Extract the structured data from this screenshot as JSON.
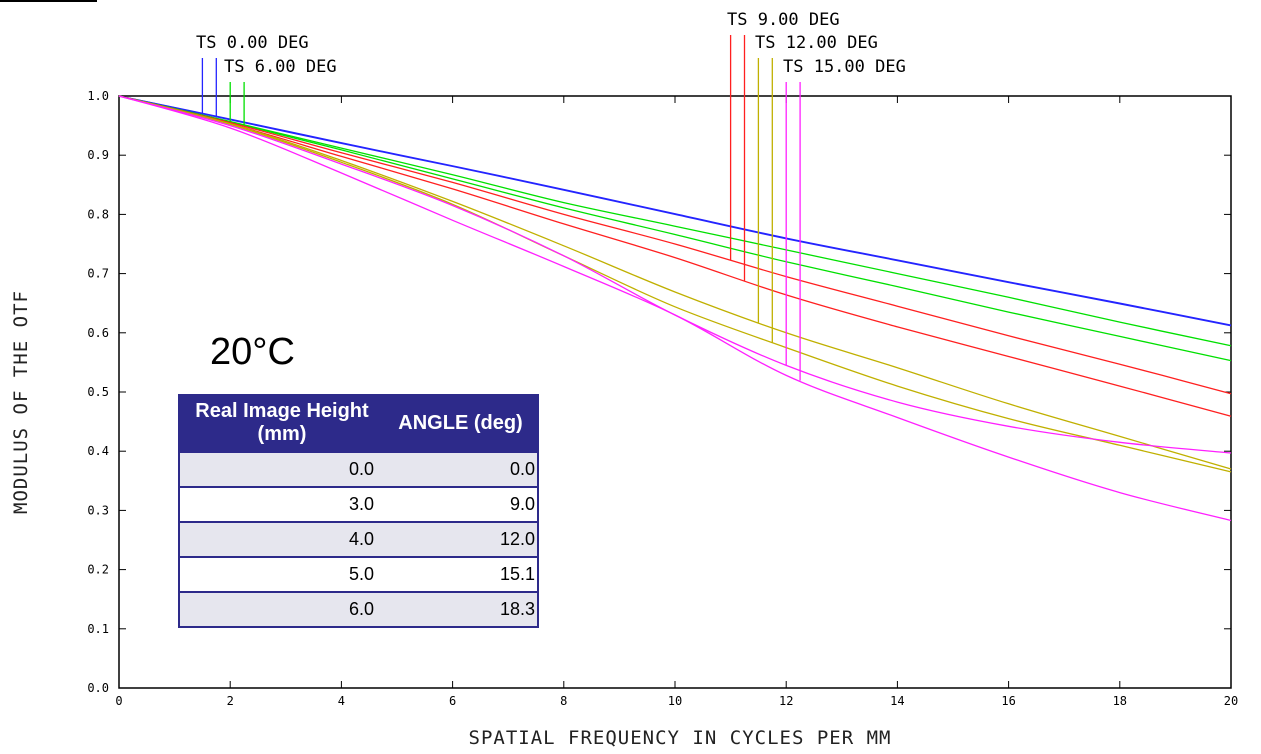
{
  "chart_data": {
    "type": "line",
    "title": "",
    "xlabel": "SPATIAL FREQUENCY IN CYCLES PER MM",
    "ylabel": "MODULUS OF THE OTF",
    "xlim": [
      0,
      20
    ],
    "ylim": [
      0,
      1
    ],
    "x_ticks": [
      0,
      2,
      4,
      6,
      8,
      10,
      12,
      14,
      16,
      18,
      20
    ],
    "y_ticks": [
      "0.0",
      "0.1",
      "0.2",
      "0.3",
      "0.4",
      "0.5",
      "0.6",
      "0.7",
      "0.8",
      "0.9",
      "1.0"
    ],
    "grid": false,
    "annotation": "20°C",
    "field_labels": [
      {
        "text": "TS 0.00 DEG",
        "lines": [
          {
            "x": 1.5,
            "color": "#2424ff"
          },
          {
            "x": 1.75,
            "color": "#2424ff"
          }
        ]
      },
      {
        "text": "TS 6.00 DEG",
        "lines": [
          {
            "x": 2.0,
            "color": "#00e000"
          },
          {
            "x": 2.25,
            "color": "#00e000"
          }
        ]
      },
      {
        "text": "TS 9.00 DEG",
        "lines": [
          {
            "x": 11.0,
            "color": "#ff2020"
          },
          {
            "x": 11.25,
            "color": "#ff2020"
          }
        ]
      },
      {
        "text": "TS 12.00 DEG",
        "lines": [
          {
            "x": 11.5,
            "color": "#c0b000"
          },
          {
            "x": 11.75,
            "color": "#c0b000"
          }
        ]
      },
      {
        "text": "TS 15.00 DEG",
        "lines": [
          {
            "x": 12.0,
            "color": "#ff20ff"
          },
          {
            "x": 12.25,
            "color": "#ff20ff"
          }
        ]
      }
    ],
    "x": [
      0,
      2,
      4,
      6,
      8,
      10,
      12,
      14,
      16,
      18,
      20
    ],
    "series": [
      {
        "color": "#2424ff",
        "values": [
          1.0,
          0.961,
          0.921,
          0.882,
          0.842,
          0.801,
          0.76,
          0.723,
          0.686,
          0.65,
          0.613
        ]
      },
      {
        "color": "#2424ff",
        "values": [
          1.0,
          0.96,
          0.92,
          0.881,
          0.841,
          0.8,
          0.759,
          0.722,
          0.685,
          0.649,
          0.612
        ]
      },
      {
        "color": "#00e000",
        "values": [
          1.0,
          0.957,
          0.912,
          0.867,
          0.82,
          0.78,
          0.74,
          0.7,
          0.66,
          0.618,
          0.578
        ]
      },
      {
        "color": "#00e000",
        "values": [
          1.0,
          0.956,
          0.909,
          0.86,
          0.811,
          0.766,
          0.72,
          0.678,
          0.635,
          0.594,
          0.553
        ]
      },
      {
        "color": "#ff2020",
        "values": [
          1.0,
          0.955,
          0.904,
          0.854,
          0.8,
          0.75,
          0.695,
          0.645,
          0.595,
          0.547,
          0.497
        ]
      },
      {
        "color": "#ff2020",
        "values": [
          1.0,
          0.953,
          0.898,
          0.843,
          0.784,
          0.727,
          0.664,
          0.61,
          0.56,
          0.51,
          0.459
        ]
      },
      {
        "color": "#c0b000",
        "values": [
          1.0,
          0.953,
          0.891,
          0.822,
          0.747,
          0.669,
          0.6,
          0.541,
          0.48,
          0.425,
          0.37
        ]
      },
      {
        "color": "#c0b000",
        "values": [
          1.0,
          0.952,
          0.888,
          0.817,
          0.73,
          0.644,
          0.575,
          0.51,
          0.455,
          0.41,
          0.365
        ]
      },
      {
        "color": "#ff20ff",
        "values": [
          1.0,
          0.95,
          0.885,
          0.815,
          0.73,
          0.63,
          0.545,
          0.483,
          0.442,
          0.415,
          0.397
        ]
      },
      {
        "color": "#ff20ff",
        "values": [
          1.0,
          0.946,
          0.87,
          0.79,
          0.712,
          0.63,
          0.528,
          0.457,
          0.39,
          0.33,
          0.283
        ]
      }
    ]
  },
  "legend": {
    "headers": [
      "Real Image Height (mm)",
      "ANGLE (deg)"
    ],
    "rows": [
      {
        "height": "0.0",
        "angle": "0.0"
      },
      {
        "height": "3.0",
        "angle": "9.0"
      },
      {
        "height": "4.0",
        "angle": "12.0"
      },
      {
        "height": "5.0",
        "angle": "15.1"
      },
      {
        "height": "6.0",
        "angle": "18.3"
      }
    ]
  }
}
